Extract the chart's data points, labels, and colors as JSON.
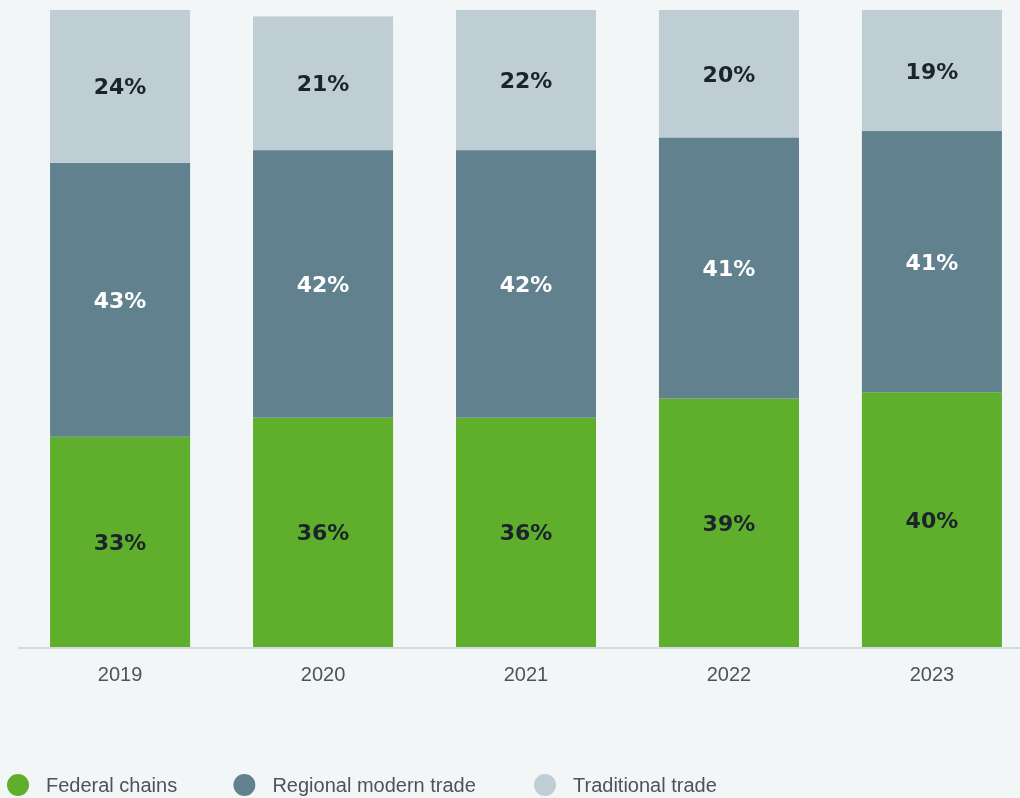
{
  "chart_data": {
    "type": "bar",
    "stacked": true,
    "categories": [
      "2019",
      "2020",
      "2021",
      "2022",
      "2023"
    ],
    "ylim": [
      0,
      100
    ],
    "tick_labels": "x",
    "legend": "bottom left",
    "series": [
      {
        "name": "Federal chains",
        "color": "#5faf2d",
        "values": [
          33,
          36,
          36,
          39,
          40
        ],
        "value_labels": [
          "33%",
          "36%",
          "36%",
          "39%",
          "40%"
        ]
      },
      {
        "name": "Regional modern trade",
        "color": "#62818f",
        "values": [
          43,
          42,
          42,
          41,
          41
        ],
        "value_labels": [
          "43%",
          "42%",
          "42%",
          "41%",
          "41%"
        ]
      },
      {
        "name": "Traditional trade",
        "color": "#bfcdd5",
        "values": [
          24,
          21,
          22,
          20,
          19
        ],
        "value_labels": [
          "24%",
          "21%",
          "22%",
          "20%",
          "19%"
        ]
      }
    ]
  }
}
